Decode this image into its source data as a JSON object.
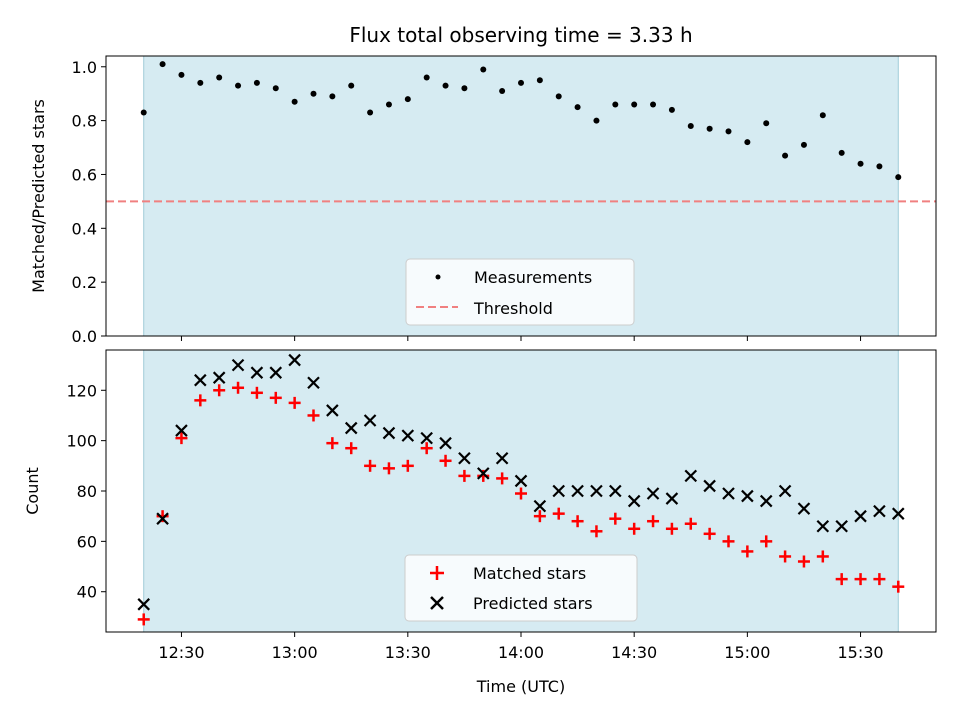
{
  "chart_data": [
    {
      "type": "scatter",
      "title": "Flux total observing time = 3.33 h",
      "xlabel": "",
      "ylabel": "Matched/Predicted stars",
      "xlim": [
        "12:10",
        "15:50"
      ],
      "ylim": [
        0,
        1.04
      ],
      "yticks": [
        "0.0",
        "0.2",
        "0.4",
        "0.6",
        "0.8",
        "1.0"
      ],
      "shaded_interval": [
        "12:20",
        "15:40"
      ],
      "shade_color": "#add8e6",
      "legend_position": "lower-center",
      "series": [
        {
          "name": "Measurements",
          "marker": "dot",
          "color": "#000000",
          "x": [
            "12:20",
            "12:25",
            "12:30",
            "12:35",
            "12:40",
            "12:45",
            "12:50",
            "12:55",
            "13:00",
            "13:05",
            "13:10",
            "13:15",
            "13:20",
            "13:25",
            "13:30",
            "13:35",
            "13:40",
            "13:45",
            "13:50",
            "13:55",
            "14:00",
            "14:05",
            "14:10",
            "14:15",
            "14:20",
            "14:25",
            "14:30",
            "14:35",
            "14:40",
            "14:45",
            "14:50",
            "14:55",
            "15:00",
            "15:05",
            "15:10",
            "15:15",
            "15:20",
            "15:25",
            "15:30",
            "15:35",
            "15:40"
          ],
          "y": [
            0.83,
            1.01,
            0.97,
            0.94,
            0.96,
            0.93,
            0.94,
            0.92,
            0.87,
            0.9,
            0.89,
            0.93,
            0.83,
            0.86,
            0.88,
            0.96,
            0.93,
            0.92,
            0.99,
            0.91,
            0.94,
            0.95,
            0.89,
            0.85,
            0.8,
            0.86,
            0.86,
            0.86,
            0.84,
            0.78,
            0.77,
            0.76,
            0.72,
            0.79,
            0.67,
            0.71,
            0.82,
            0.68,
            0.64,
            0.63,
            0.59
          ]
        },
        {
          "name": "Threshold",
          "marker": "dashed-line",
          "color": "#f08080",
          "y": [
            0.5
          ]
        }
      ]
    },
    {
      "type": "scatter",
      "title": "",
      "xlabel": "Time (UTC)",
      "ylabel": "Count",
      "xlim": [
        "12:10",
        "15:50"
      ],
      "ylim": [
        24,
        136
      ],
      "yticks": [
        "40",
        "60",
        "80",
        "100",
        "120"
      ],
      "xticks": [
        "12:30",
        "13:00",
        "13:30",
        "14:00",
        "14:30",
        "15:00",
        "15:30"
      ],
      "shaded_interval": [
        "12:20",
        "15:40"
      ],
      "shade_color": "#add8e6",
      "legend_position": "lower-center",
      "series": [
        {
          "name": "Matched stars",
          "marker": "plus",
          "color": "#ff0000",
          "x": [
            "12:20",
            "12:25",
            "12:30",
            "12:35",
            "12:40",
            "12:45",
            "12:50",
            "12:55",
            "13:00",
            "13:05",
            "13:10",
            "13:15",
            "13:20",
            "13:25",
            "13:30",
            "13:35",
            "13:40",
            "13:45",
            "13:50",
            "13:55",
            "14:00",
            "14:05",
            "14:10",
            "14:15",
            "14:20",
            "14:25",
            "14:30",
            "14:35",
            "14:40",
            "14:45",
            "14:50",
            "14:55",
            "15:00",
            "15:05",
            "15:10",
            "15:15",
            "15:20",
            "15:25",
            "15:30",
            "15:35",
            "15:40"
          ],
          "y": [
            29,
            70,
            101,
            116,
            120,
            121,
            119,
            117,
            115,
            110,
            99,
            97,
            90,
            89,
            90,
            97,
            92,
            86,
            86,
            85,
            79,
            70,
            71,
            68,
            64,
            69,
            65,
            68,
            65,
            67,
            63,
            60,
            56,
            60,
            54,
            52,
            54,
            45,
            45,
            45,
            42
          ]
        },
        {
          "name": "Predicted stars",
          "marker": "x",
          "color": "#000000",
          "x": [
            "12:20",
            "12:25",
            "12:30",
            "12:35",
            "12:40",
            "12:45",
            "12:50",
            "12:55",
            "13:00",
            "13:05",
            "13:10",
            "13:15",
            "13:20",
            "13:25",
            "13:30",
            "13:35",
            "13:40",
            "13:45",
            "13:50",
            "13:55",
            "14:00",
            "14:05",
            "14:10",
            "14:15",
            "14:20",
            "14:25",
            "14:30",
            "14:35",
            "14:40",
            "14:45",
            "14:50",
            "14:55",
            "15:00",
            "15:05",
            "15:10",
            "15:15",
            "15:20",
            "15:25",
            "15:30",
            "15:35",
            "15:40"
          ],
          "y": [
            35,
            69,
            104,
            124,
            125,
            130,
            127,
            127,
            132,
            123,
            112,
            105,
            108,
            103,
            102,
            101,
            99,
            93,
            87,
            93,
            84,
            74,
            80,
            80,
            80,
            80,
            76,
            79,
            77,
            86,
            82,
            79,
            78,
            76,
            80,
            73,
            66,
            66,
            70,
            72,
            71
          ]
        }
      ]
    }
  ]
}
